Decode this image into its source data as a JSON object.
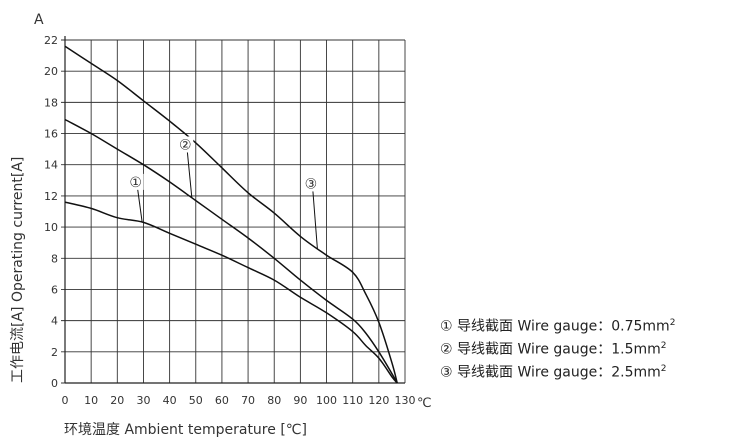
{
  "chart_data": {
    "type": "line",
    "y_unit_label": "A",
    "x_unit_label": "℃",
    "ylabel": "工作电流[A]  Operating current[A]",
    "xlabel": "环境温度 Ambient temperature [℃]",
    "xlim": [
      0,
      130
    ],
    "ylim": [
      0,
      22
    ],
    "x_ticks": [
      "0",
      "10",
      "20",
      "30",
      "40",
      "50",
      "60",
      "70",
      "80",
      "90",
      "100",
      "110",
      "120",
      "130"
    ],
    "y_ticks": [
      "0",
      "2",
      "4",
      "6",
      "8",
      "10",
      "12",
      "14",
      "16",
      "18",
      "20",
      "22"
    ],
    "grid": true,
    "series": [
      {
        "name": "①",
        "x": [
          0,
          10,
          20,
          30,
          40,
          50,
          60,
          70,
          80,
          90,
          100,
          110,
          115,
          120,
          125,
          127
        ],
        "y": [
          11.6,
          11.2,
          10.6,
          10.3,
          9.6,
          8.9,
          8.2,
          7.4,
          6.6,
          5.5,
          4.5,
          3.3,
          2.4,
          1.6,
          0.4,
          0
        ]
      },
      {
        "name": "②",
        "x": [
          0,
          10,
          20,
          30,
          40,
          50,
          60,
          70,
          80,
          90,
          100,
          110,
          115,
          120,
          125,
          127
        ],
        "y": [
          16.9,
          16.0,
          15.0,
          14.0,
          12.9,
          11.7,
          10.5,
          9.3,
          8.0,
          6.6,
          5.3,
          4.1,
          3.2,
          2.0,
          0.6,
          0
        ]
      },
      {
        "name": "③",
        "x": [
          0,
          10,
          20,
          30,
          40,
          50,
          60,
          70,
          80,
          90,
          100,
          110,
          115,
          120,
          125,
          127
        ],
        "y": [
          21.6,
          20.5,
          19.4,
          18.1,
          16.8,
          15.4,
          13.8,
          12.2,
          10.9,
          9.4,
          8.2,
          7.1,
          5.7,
          3.9,
          1.3,
          0
        ]
      }
    ],
    "curve_labels": [
      {
        "label": "①",
        "x": 27,
        "y": 12.9
      },
      {
        "label": "②",
        "x": 46,
        "y": 15.3
      },
      {
        "label": "③",
        "x": 94,
        "y": 12.8
      }
    ]
  },
  "legend": [
    {
      "marker": "①",
      "text": "导线截面 Wire gauge：0.75mm",
      "sup": "2"
    },
    {
      "marker": "②",
      "text": "导线截面 Wire gauge：1.5mm",
      "sup": "2"
    },
    {
      "marker": "③",
      "text": "导线截面 Wire gauge：2.5mm",
      "sup": "2"
    }
  ]
}
